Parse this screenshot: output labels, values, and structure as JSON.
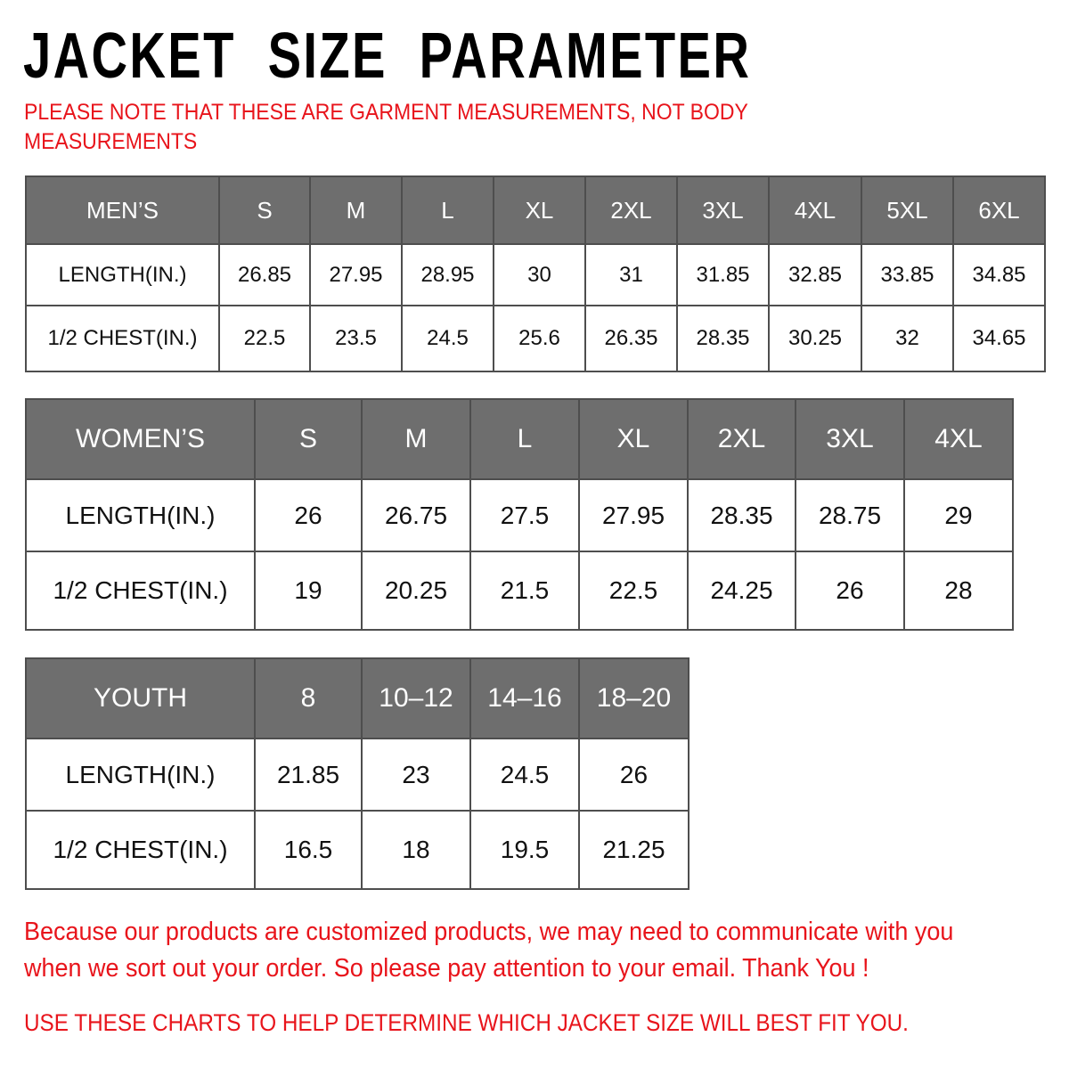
{
  "title": "JACKET  SIZE  PARAMETER",
  "note_lines": [
    "PLEASE NOTE THAT THESE ARE GARMENT MEASUREMENTS, NOT BODY",
    "MEASUREMENTS"
  ],
  "mens": {
    "header": [
      "MEN’S",
      "S",
      "M",
      "L",
      "XL",
      "2XL",
      "3XL",
      "4XL",
      "5XL",
      "6XL"
    ],
    "rows": [
      [
        "LENGTH(IN.)",
        "26.85",
        "27.95",
        "28.95",
        "30",
        "31",
        "31.85",
        "32.85",
        "33.85",
        "34.85"
      ],
      [
        "1/2 CHEST(IN.)",
        "22.5",
        "23.5",
        "24.5",
        "25.6",
        "26.35",
        "28.35",
        "30.25",
        "32",
        "34.65"
      ]
    ]
  },
  "womens": {
    "header": [
      "WOMEN’S",
      "S",
      "M",
      "L",
      "XL",
      "2XL",
      "3XL",
      "4XL"
    ],
    "rows": [
      [
        "LENGTH(IN.)",
        "26",
        "26.75",
        "27.5",
        "27.95",
        "28.35",
        "28.75",
        "29"
      ],
      [
        "1/2 CHEST(IN.)",
        "19",
        "20.25",
        "21.5",
        "22.5",
        "24.25",
        "26",
        "28"
      ]
    ]
  },
  "youth": {
    "header": [
      "YOUTH",
      "8",
      "10–12",
      "14–16",
      "18–20"
    ],
    "rows": [
      [
        "LENGTH(IN.)",
        "21.85",
        "23",
        "24.5",
        "26"
      ],
      [
        "1/2 CHEST(IN.)",
        "16.5",
        "18",
        "19.5",
        "21.25"
      ]
    ]
  },
  "footer": {
    "line1": "Because our products are customized products, we may need to communicate with you",
    "line2": "when we sort out your order. So please pay attention to your email. Thank You !",
    "line3": "USE THESE CHARTS TO HELP DETERMINE WHICH JACKET SIZE WILL BEST FIT YOU."
  },
  "colors": {
    "header_bg": "#6e6e6e",
    "note_red": "#e8141b"
  }
}
